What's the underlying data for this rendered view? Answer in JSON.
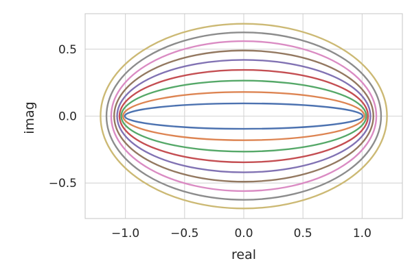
{
  "chart_data": {
    "type": "line",
    "xlabel": "real",
    "ylabel": "imag",
    "xlim": [
      -1.34,
      1.34
    ],
    "ylim": [
      -0.765,
      0.765
    ],
    "grid": true,
    "legend": "none",
    "xticks": [
      {
        "value": -1.0,
        "label": "−1.0"
      },
      {
        "value": -0.5,
        "label": "−0.5"
      },
      {
        "value": 0.0,
        "label": "0.0"
      },
      {
        "value": 0.5,
        "label": "0.5"
      },
      {
        "value": 1.0,
        "label": "1.0"
      }
    ],
    "yticks": [
      {
        "value": 0.5,
        "label": "0.5"
      },
      {
        "value": 0.0,
        "label": "0.0"
      },
      {
        "value": -0.5,
        "label": "−0.5"
      }
    ],
    "series": [
      {
        "rx": 1.005,
        "ry": 0.095,
        "color": "#4c72b0"
      },
      {
        "rx": 1.02,
        "ry": 0.18,
        "color": "#dd8452"
      },
      {
        "rx": 1.035,
        "ry": 0.265,
        "color": "#55a868"
      },
      {
        "rx": 1.05,
        "ry": 0.345,
        "color": "#c44e52"
      },
      {
        "rx": 1.07,
        "ry": 0.42,
        "color": "#8172b3"
      },
      {
        "rx": 1.095,
        "ry": 0.49,
        "color": "#937860"
      },
      {
        "rx": 1.12,
        "ry": 0.56,
        "color": "#da8bc3"
      },
      {
        "rx": 1.16,
        "ry": 0.625,
        "color": "#8c8c8c"
      },
      {
        "rx": 1.21,
        "ry": 0.69,
        "color": "#ccb974"
      }
    ]
  }
}
